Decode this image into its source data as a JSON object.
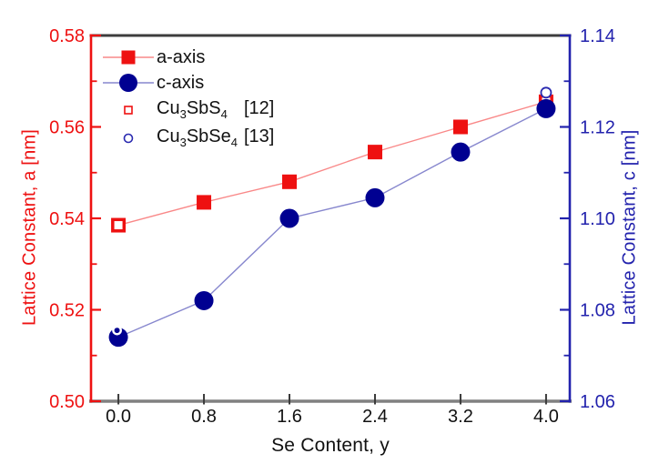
{
  "chart_data": {
    "type": "line",
    "title": "",
    "x_values": [
      0.0,
      0.8,
      1.6,
      2.4,
      3.2,
      4.0
    ],
    "series": [
      {
        "name": "a-axis",
        "axis": "left",
        "marker": "filled-square",
        "marker_color": "#ee1111",
        "line_color": "#f98888",
        "values": [
          0.5385,
          0.5435,
          0.548,
          0.5545,
          0.56,
          0.5655
        ]
      },
      {
        "name": "c-axis",
        "axis": "right",
        "marker": "filled-circle",
        "marker_color": "#000091",
        "line_color": "#8787ce",
        "values": [
          1.074,
          1.082,
          1.1,
          1.1045,
          1.1145,
          1.124
        ]
      }
    ],
    "reference_points": [
      {
        "name": "Cu3SbS4 [12]",
        "axis": "left",
        "marker": "open-square",
        "color": "#ee1111",
        "x": 0.0,
        "value": 0.5385
      },
      {
        "name": "Cu3SbS4 [12]",
        "axis": "right",
        "marker": "open-circle",
        "color": "#2a2ab0",
        "x": 0.0,
        "value": 1.0755
      },
      {
        "name": "Cu3SbSe4 [13]",
        "axis": "left",
        "marker": "open-square",
        "color": "#ee1111",
        "x": 4.0,
        "value": 0.5655
      },
      {
        "name": "Cu3SbSe4 [13]",
        "axis": "right",
        "marker": "open-circle",
        "color": "#2a2ab0",
        "x": 4.0,
        "value": 1.1275
      }
    ],
    "x_axis": {
      "label": "Se Content, y",
      "tick_labels": [
        "0.0",
        "0.8",
        "1.6",
        "2.4",
        "3.2",
        "4.0"
      ],
      "tick_values": [
        0.0,
        0.8,
        1.6,
        2.4,
        3.2,
        4.0
      ],
      "xlim": [
        -0.256,
        4.222
      ],
      "color": "#3a3a3a"
    },
    "left_axis": {
      "label": "Lattice Constant, a [nm]",
      "tick_labels": [
        "0.50",
        "0.52",
        "0.54",
        "0.56",
        "0.58"
      ],
      "tick_values": [
        0.5,
        0.52,
        0.54,
        0.56,
        0.58
      ],
      "minor_tick_values": [
        0.51,
        0.53,
        0.55,
        0.57
      ],
      "ylim": [
        0.5,
        0.58
      ],
      "color": "#ee1111"
    },
    "right_axis": {
      "label": "Lattice Constant, c [nm]",
      "tick_labels": [
        "1.06",
        "1.08",
        "1.10",
        "1.12",
        "1.14"
      ],
      "tick_values": [
        1.06,
        1.08,
        1.1,
        1.12,
        1.14
      ],
      "minor_tick_values": [
        1.07,
        1.09,
        1.11,
        1.13
      ],
      "ylim": [
        1.06,
        1.14
      ],
      "color": "#2222ad"
    },
    "grid": false,
    "legend_position": "top-left",
    "frame": {
      "top_color": "#3d3d3d",
      "bottom_color": "#808080"
    }
  },
  "legend": {
    "items": [
      {
        "label": "a-axis",
        "marker": "filled-square",
        "marker_color": "#ee1111",
        "line_color": "#f98888"
      },
      {
        "label": "c-axis",
        "marker": "filled-circle",
        "marker_color": "#000091",
        "line_color": "#8787ce"
      },
      {
        "f1": "Cu",
        "s1": "3",
        "f2": "SbS",
        "s2": "4",
        "ref": "[12]",
        "marker": "open-square",
        "marker_color": "#ee1111"
      },
      {
        "f1": "Cu",
        "s1": "3",
        "f2": "SbSe",
        "s2": "4",
        "ref": "[13]",
        "marker": "open-circle",
        "marker_color": "#2a2ab0"
      }
    ]
  }
}
